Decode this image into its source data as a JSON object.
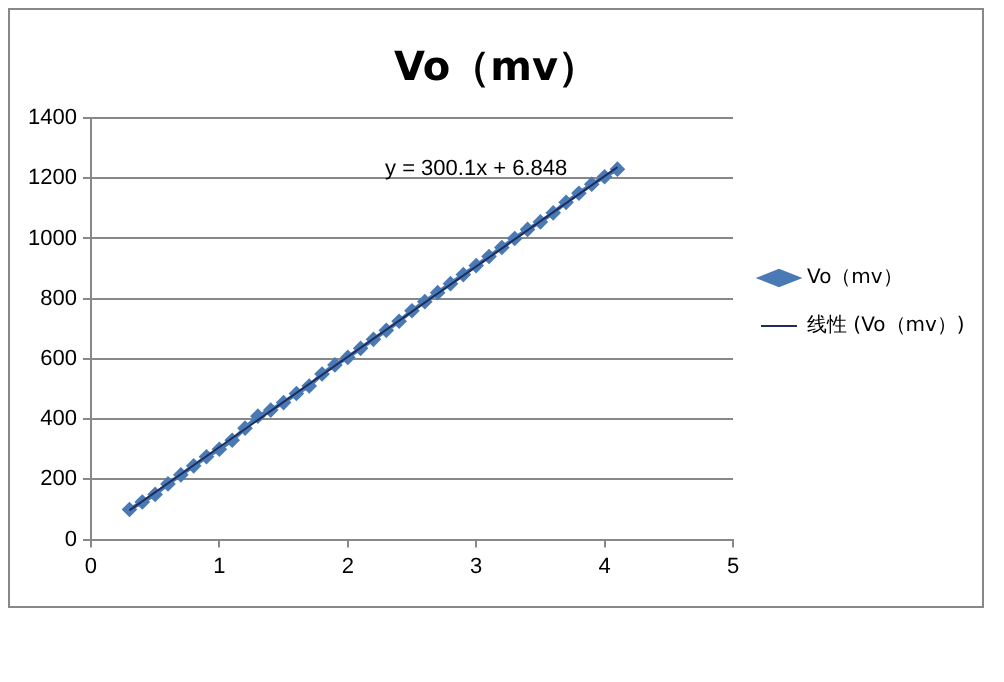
{
  "chart_data": {
    "type": "line",
    "title": "Vo（mv）",
    "x": [
      0.3,
      0.4,
      0.5,
      0.6,
      0.7,
      0.8,
      0.9,
      1.0,
      1.1,
      1.2,
      1.3,
      1.4,
      1.5,
      1.6,
      1.7,
      1.8,
      1.9,
      2.0,
      2.1,
      2.2,
      2.3,
      2.4,
      2.5,
      2.6,
      2.7,
      2.8,
      2.9,
      3.0,
      3.1,
      3.2,
      3.3,
      3.4,
      3.5,
      3.6,
      3.7,
      3.8,
      3.9,
      4.0,
      4.1
    ],
    "series": [
      {
        "name": "Vo（mv）",
        "color": "#4a7ab5",
        "marker": "diamond",
        "values": [
          100,
          125,
          150,
          185,
          215,
          245,
          275,
          300,
          330,
          370,
          410,
          430,
          455,
          485,
          510,
          550,
          580,
          605,
          635,
          665,
          695,
          725,
          760,
          790,
          820,
          850,
          880,
          910,
          940,
          970,
          1000,
          1030,
          1055,
          1085,
          1120,
          1150,
          1180,
          1205,
          1230
        ]
      },
      {
        "name": "线性 (Vo（mv）)",
        "type": "line",
        "color": "#1f2d5c",
        "x": [
          0.3,
          4.1
        ],
        "values": [
          97,
          1237
        ]
      }
    ],
    "xlim": [
      0,
      5
    ],
    "xticks": [
      0,
      1,
      2,
      3,
      4,
      5
    ],
    "ylim": [
      0,
      1400
    ],
    "yticks": [
      0,
      200,
      400,
      600,
      800,
      1000,
      1200,
      1400
    ],
    "grid": "y",
    "legend": "right",
    "line_style": "solid",
    "annotations": [
      "y = 300.1x + 6.848"
    ]
  }
}
